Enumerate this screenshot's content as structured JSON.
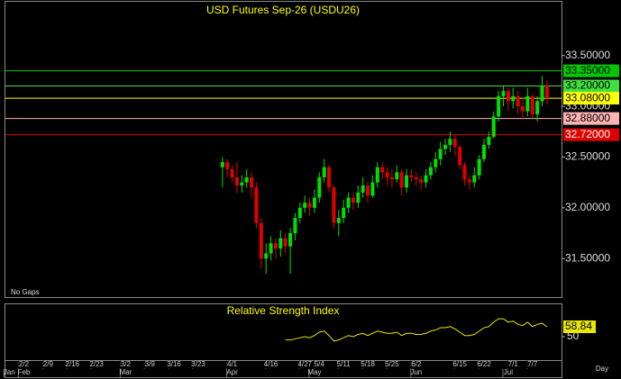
{
  "chart_data": {
    "type": "candlestick",
    "title": "USD Futures Sep-26 (USDU26)",
    "note": "No Gaps",
    "x_unit": "Day",
    "xlim": [
      -4,
      111
    ],
    "xticks": [
      {
        "value": 0,
        "label": "2/2"
      },
      {
        "value": 5,
        "label": "2/9"
      },
      {
        "value": 10,
        "label": "2/16"
      },
      {
        "value": 15,
        "label": "2/23"
      },
      {
        "value": 21,
        "label": "3/2"
      },
      {
        "value": 26,
        "label": "3/9"
      },
      {
        "value": 31,
        "label": "3/16"
      },
      {
        "value": 36,
        "label": "3/23"
      },
      {
        "value": 43,
        "label": "4/1"
      },
      {
        "value": 51,
        "label": "4/16"
      },
      {
        "value": 58,
        "label": "4/27"
      },
      {
        "value": 61,
        "label": "5/4"
      },
      {
        "value": 66,
        "label": "5/11"
      },
      {
        "value": 71,
        "label": "5/18"
      },
      {
        "value": 76,
        "label": "5/25"
      },
      {
        "value": 81,
        "label": "6/2"
      },
      {
        "value": 90,
        "label": "6/15"
      },
      {
        "value": 95,
        "label": "6/22"
      },
      {
        "value": 101,
        "label": "7/1"
      },
      {
        "value": 105,
        "label": "7/7"
      }
    ],
    "month_ticks": [
      {
        "value": -3,
        "label": "Jan"
      },
      {
        "value": 0,
        "label": "Feb"
      },
      {
        "value": 21,
        "label": "Mar"
      },
      {
        "value": 43,
        "label": "Apr"
      },
      {
        "value": 60,
        "label": "May"
      },
      {
        "value": 81,
        "label": "Jun"
      },
      {
        "value": 100,
        "label": "Jul"
      }
    ],
    "ylim": [
      31.12,
      34.03
    ],
    "yticks": [
      {
        "value": 31.5,
        "label": "31.50000"
      },
      {
        "value": 32.0,
        "label": "32.00000"
      },
      {
        "value": 32.5,
        "label": "32.50000"
      },
      {
        "value": 33.0,
        "label": "33.00000"
      },
      {
        "value": 33.5,
        "label": "33.50000"
      }
    ],
    "levels": [
      {
        "value": 33.35,
        "label": "33.35000",
        "color": "#00c800"
      },
      {
        "value": 33.2,
        "label": "33.20000",
        "color": "#40e040"
      },
      {
        "value": 33.08,
        "label": "33.08000",
        "color": "#ffff00"
      },
      {
        "value": 32.88,
        "label": "32.88000",
        "color": "#ffb4b4"
      },
      {
        "value": 32.72,
        "label": "32.72000",
        "color": "#e00000"
      }
    ],
    "up_color": "#00e000",
    "down_color": "#e00000",
    "x": [
      41,
      42,
      43,
      44,
      45,
      46,
      47,
      48,
      49,
      50,
      51,
      52,
      53,
      54,
      55,
      56,
      57,
      58,
      59,
      60,
      61,
      62,
      63,
      64,
      65,
      66,
      67,
      68,
      69,
      70,
      71,
      72,
      73,
      74,
      75,
      76,
      77,
      78,
      79,
      80,
      81,
      82,
      83,
      84,
      85,
      86,
      87,
      88,
      89,
      90,
      91,
      92,
      93,
      94,
      95,
      96,
      97,
      98,
      99,
      100,
      101,
      102,
      103,
      104,
      105,
      106,
      107,
      108
    ],
    "open": [
      32.4,
      32.45,
      32.38,
      32.3,
      32.22,
      32.25,
      32.3,
      32.2,
      31.85,
      31.5,
      31.55,
      31.65,
      31.6,
      31.7,
      31.62,
      31.75,
      31.9,
      32.0,
      32.05,
      32.0,
      32.1,
      32.3,
      32.4,
      32.2,
      31.85,
      31.9,
      32.0,
      32.1,
      32.05,
      32.15,
      32.22,
      32.12,
      32.25,
      32.4,
      32.35,
      32.3,
      32.28,
      32.35,
      32.2,
      32.32,
      32.3,
      32.28,
      32.25,
      32.32,
      32.4,
      32.48,
      32.58,
      32.62,
      32.68,
      32.6,
      32.42,
      32.28,
      32.25,
      32.32,
      32.48,
      32.62,
      32.7,
      32.9,
      33.1,
      33.15,
      33.05,
      33.1,
      33.0,
      32.95,
      33.1,
      32.92,
      33.05,
      33.2
    ],
    "high": [
      32.5,
      32.48,
      32.42,
      32.45,
      32.32,
      32.38,
      32.35,
      32.25,
      31.9,
      31.65,
      31.72,
      31.7,
      31.78,
      31.75,
      31.8,
      31.95,
      32.05,
      32.12,
      32.1,
      32.18,
      32.35,
      32.48,
      32.42,
      32.22,
      31.98,
      32.08,
      32.15,
      32.15,
      32.22,
      32.3,
      32.25,
      32.32,
      32.45,
      32.45,
      32.4,
      32.38,
      32.42,
      32.38,
      32.38,
      32.38,
      32.35,
      32.32,
      32.38,
      32.45,
      32.55,
      32.65,
      32.68,
      32.75,
      32.72,
      32.62,
      32.45,
      32.32,
      32.4,
      32.52,
      32.68,
      32.75,
      32.95,
      33.15,
      33.2,
      33.18,
      33.18,
      33.15,
      33.08,
      33.18,
      33.12,
      33.1,
      33.3,
      33.25
    ],
    "low": [
      32.2,
      32.3,
      32.25,
      32.15,
      32.15,
      32.2,
      32.1,
      31.8,
      31.4,
      31.35,
      31.48,
      31.5,
      31.52,
      31.55,
      31.35,
      31.68,
      31.85,
      31.95,
      31.92,
      31.95,
      32.05,
      32.25,
      32.15,
      31.8,
      31.72,
      31.85,
      31.95,
      31.98,
      32.0,
      32.1,
      32.05,
      32.1,
      32.2,
      32.28,
      32.22,
      32.2,
      32.25,
      32.12,
      32.15,
      32.25,
      32.22,
      32.18,
      32.2,
      32.28,
      32.35,
      32.42,
      32.52,
      32.55,
      32.52,
      32.38,
      32.22,
      32.18,
      32.2,
      32.28,
      32.45,
      32.58,
      32.68,
      32.85,
      33.0,
      32.95,
      32.98,
      32.92,
      32.88,
      32.9,
      32.88,
      32.85,
      33.0,
      33.02
    ],
    "close": [
      32.45,
      32.38,
      32.3,
      32.22,
      32.25,
      32.3,
      32.2,
      31.85,
      31.5,
      31.55,
      31.65,
      31.6,
      31.7,
      31.62,
      31.75,
      31.9,
      32.0,
      32.05,
      32.0,
      32.1,
      32.3,
      32.4,
      32.2,
      31.85,
      31.9,
      32.0,
      32.1,
      32.05,
      32.15,
      32.22,
      32.12,
      32.25,
      32.4,
      32.35,
      32.3,
      32.28,
      32.35,
      32.2,
      32.32,
      32.3,
      32.28,
      32.25,
      32.32,
      32.4,
      32.48,
      32.58,
      32.62,
      32.68,
      32.6,
      32.42,
      32.28,
      32.25,
      32.32,
      32.48,
      32.62,
      32.7,
      32.9,
      33.1,
      33.15,
      33.05,
      33.1,
      33.0,
      32.95,
      33.1,
      32.92,
      33.05,
      33.2,
      33.08
    ],
    "rsi": {
      "title": "Relative Strength Index",
      "color": "#e8e800",
      "ylim": [
        29,
        79
      ],
      "yticks": [
        50
      ],
      "last_label": {
        "value": 58.84,
        "label": "58.84"
      },
      "x": [
        54,
        55,
        56,
        57,
        58,
        59,
        60,
        61,
        62,
        63,
        64,
        65,
        66,
        67,
        68,
        69,
        70,
        71,
        72,
        73,
        74,
        75,
        76,
        77,
        78,
        79,
        80,
        81,
        82,
        83,
        84,
        85,
        86,
        87,
        88,
        89,
        90,
        91,
        92,
        93,
        94,
        95,
        96,
        97,
        98,
        99,
        100,
        101,
        102,
        103,
        104,
        105,
        106,
        107,
        108
      ],
      "values": [
        47,
        47,
        48,
        49,
        50,
        49,
        51,
        54,
        55,
        51,
        46,
        47,
        49,
        51,
        50,
        52,
        53,
        51,
        53,
        55,
        54,
        53,
        53,
        54,
        51,
        53,
        53,
        52,
        52,
        53,
        55,
        56,
        58,
        58,
        59,
        57,
        54,
        51,
        51,
        52,
        55,
        58,
        59,
        63,
        66,
        66,
        63,
        64,
        61,
        60,
        63,
        59,
        61,
        62,
        58.84
      ]
    }
  }
}
